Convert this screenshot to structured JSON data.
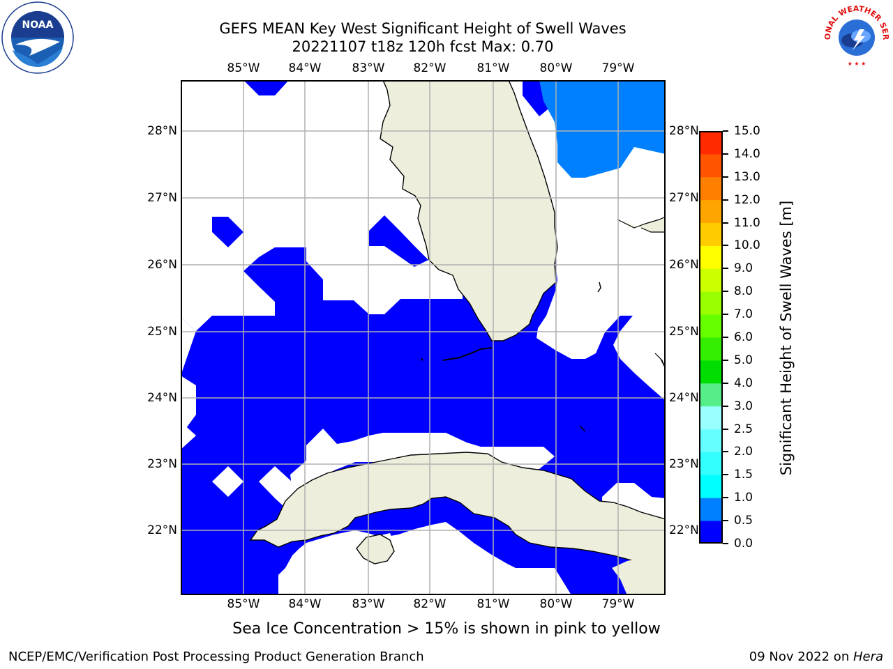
{
  "title": {
    "line1": "GEFS MEAN Key West Significant Height of Swell Waves",
    "line2": "20221107 t18z 120h fcst   Max: 0.70"
  },
  "logos": {
    "noaa": {
      "text": "NOAA",
      "ring_text": "NATIONAL OCEANIC AND ATMOSPHERIC ADMINISTRATION · U.S. DEPARTMENT OF COMMERCE"
    },
    "nws": {
      "ring_text": "NATIONAL WEATHER SERVICE"
    }
  },
  "map": {
    "lon_labels": [
      "85°W",
      "84°W",
      "83°W",
      "82°W",
      "81°W",
      "80°W",
      "79°W"
    ],
    "lat_labels": [
      "28°N",
      "27°N",
      "26°N",
      "25°N",
      "24°N",
      "23°N",
      "22°N"
    ],
    "colors": {
      "land": "#eeeedd",
      "ocean_low": "#0000ff",
      "ocean_mid": "#0080ff",
      "grid": "#b0b0b0"
    }
  },
  "colorbar": {
    "label": "Significant Height of Swell Waves [m]",
    "ticks": [
      "0.0",
      "0.5",
      "1.0",
      "1.5",
      "2.0",
      "2.5",
      "3.0",
      "4.0",
      "5.0",
      "6.0",
      "7.0",
      "8.0",
      "9.0",
      "10.0",
      "11.0",
      "12.0",
      "13.0",
      "14.0",
      "15.0"
    ],
    "colors": [
      "#0000ff",
      "#0080ff",
      "#00ffff",
      "#33ffff",
      "#66ffff",
      "#99ffff",
      "#55ee88",
      "#00dd00",
      "#33ee00",
      "#66ff00",
      "#99ff00",
      "#ccff00",
      "#ffff00",
      "#ffcc00",
      "#ffa500",
      "#ff7f00",
      "#ff5500",
      "#ff2a00"
    ]
  },
  "note": "Sea Ice Concentration > 15% is shown in pink to yellow",
  "footer": {
    "left": "NCEP/EMC/Verification Post Processing Product Generation Branch",
    "right_date": "09 Nov 2022 on ",
    "right_host": "Hera"
  }
}
